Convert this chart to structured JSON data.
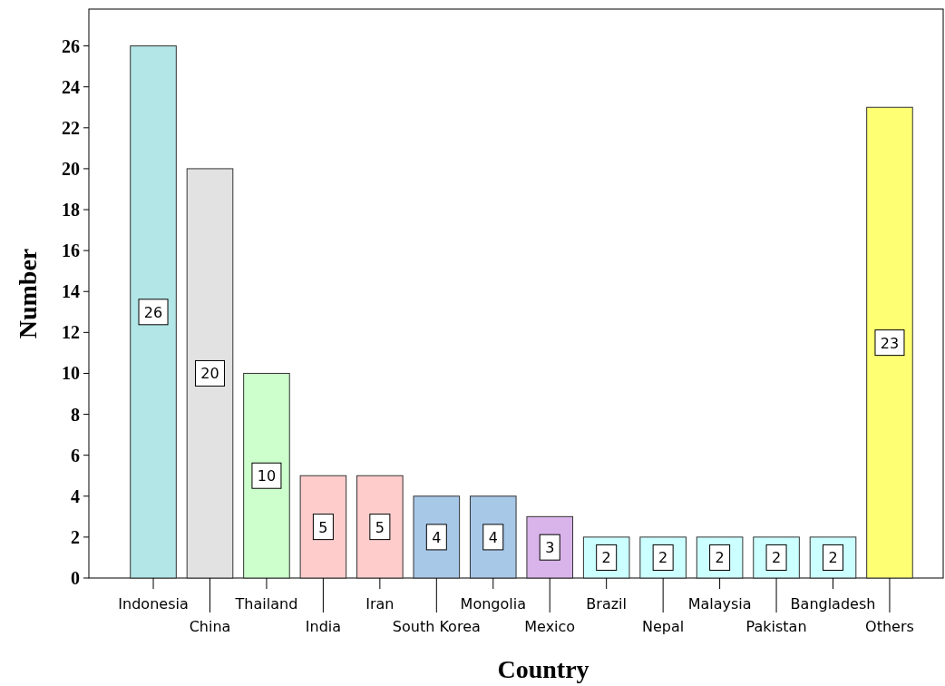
{
  "chart_data": {
    "type": "bar",
    "xlabel": "Country",
    "ylabel": "Number",
    "categories": [
      "Indonesia",
      "China",
      "Thailand",
      "India",
      "Iran",
      "South Korea",
      "Mongolia",
      "Mexico",
      "Brazil",
      "Nepal",
      "Malaysia",
      "Pakistan",
      "Bangladesh",
      "Others"
    ],
    "values": [
      26,
      20,
      10,
      5,
      5,
      4,
      4,
      3,
      2,
      2,
      2,
      2,
      2,
      23
    ],
    "colors": [
      "#b3e6e6",
      "#e2e2e2",
      "#ccffcc",
      "#ffcccc",
      "#ffcccc",
      "#a8c8e8",
      "#a8c8e8",
      "#d8b4ea",
      "#ccffff",
      "#ccffff",
      "#ccffff",
      "#ccffff",
      "#ccffff",
      "#ffff73"
    ],
    "ylim": [
      0,
      27.8
    ],
    "yticks": [
      0,
      2,
      4,
      6,
      8,
      10,
      12,
      14,
      16,
      18,
      20,
      22,
      24,
      26
    ],
    "data_labels": true,
    "grid": false
  }
}
